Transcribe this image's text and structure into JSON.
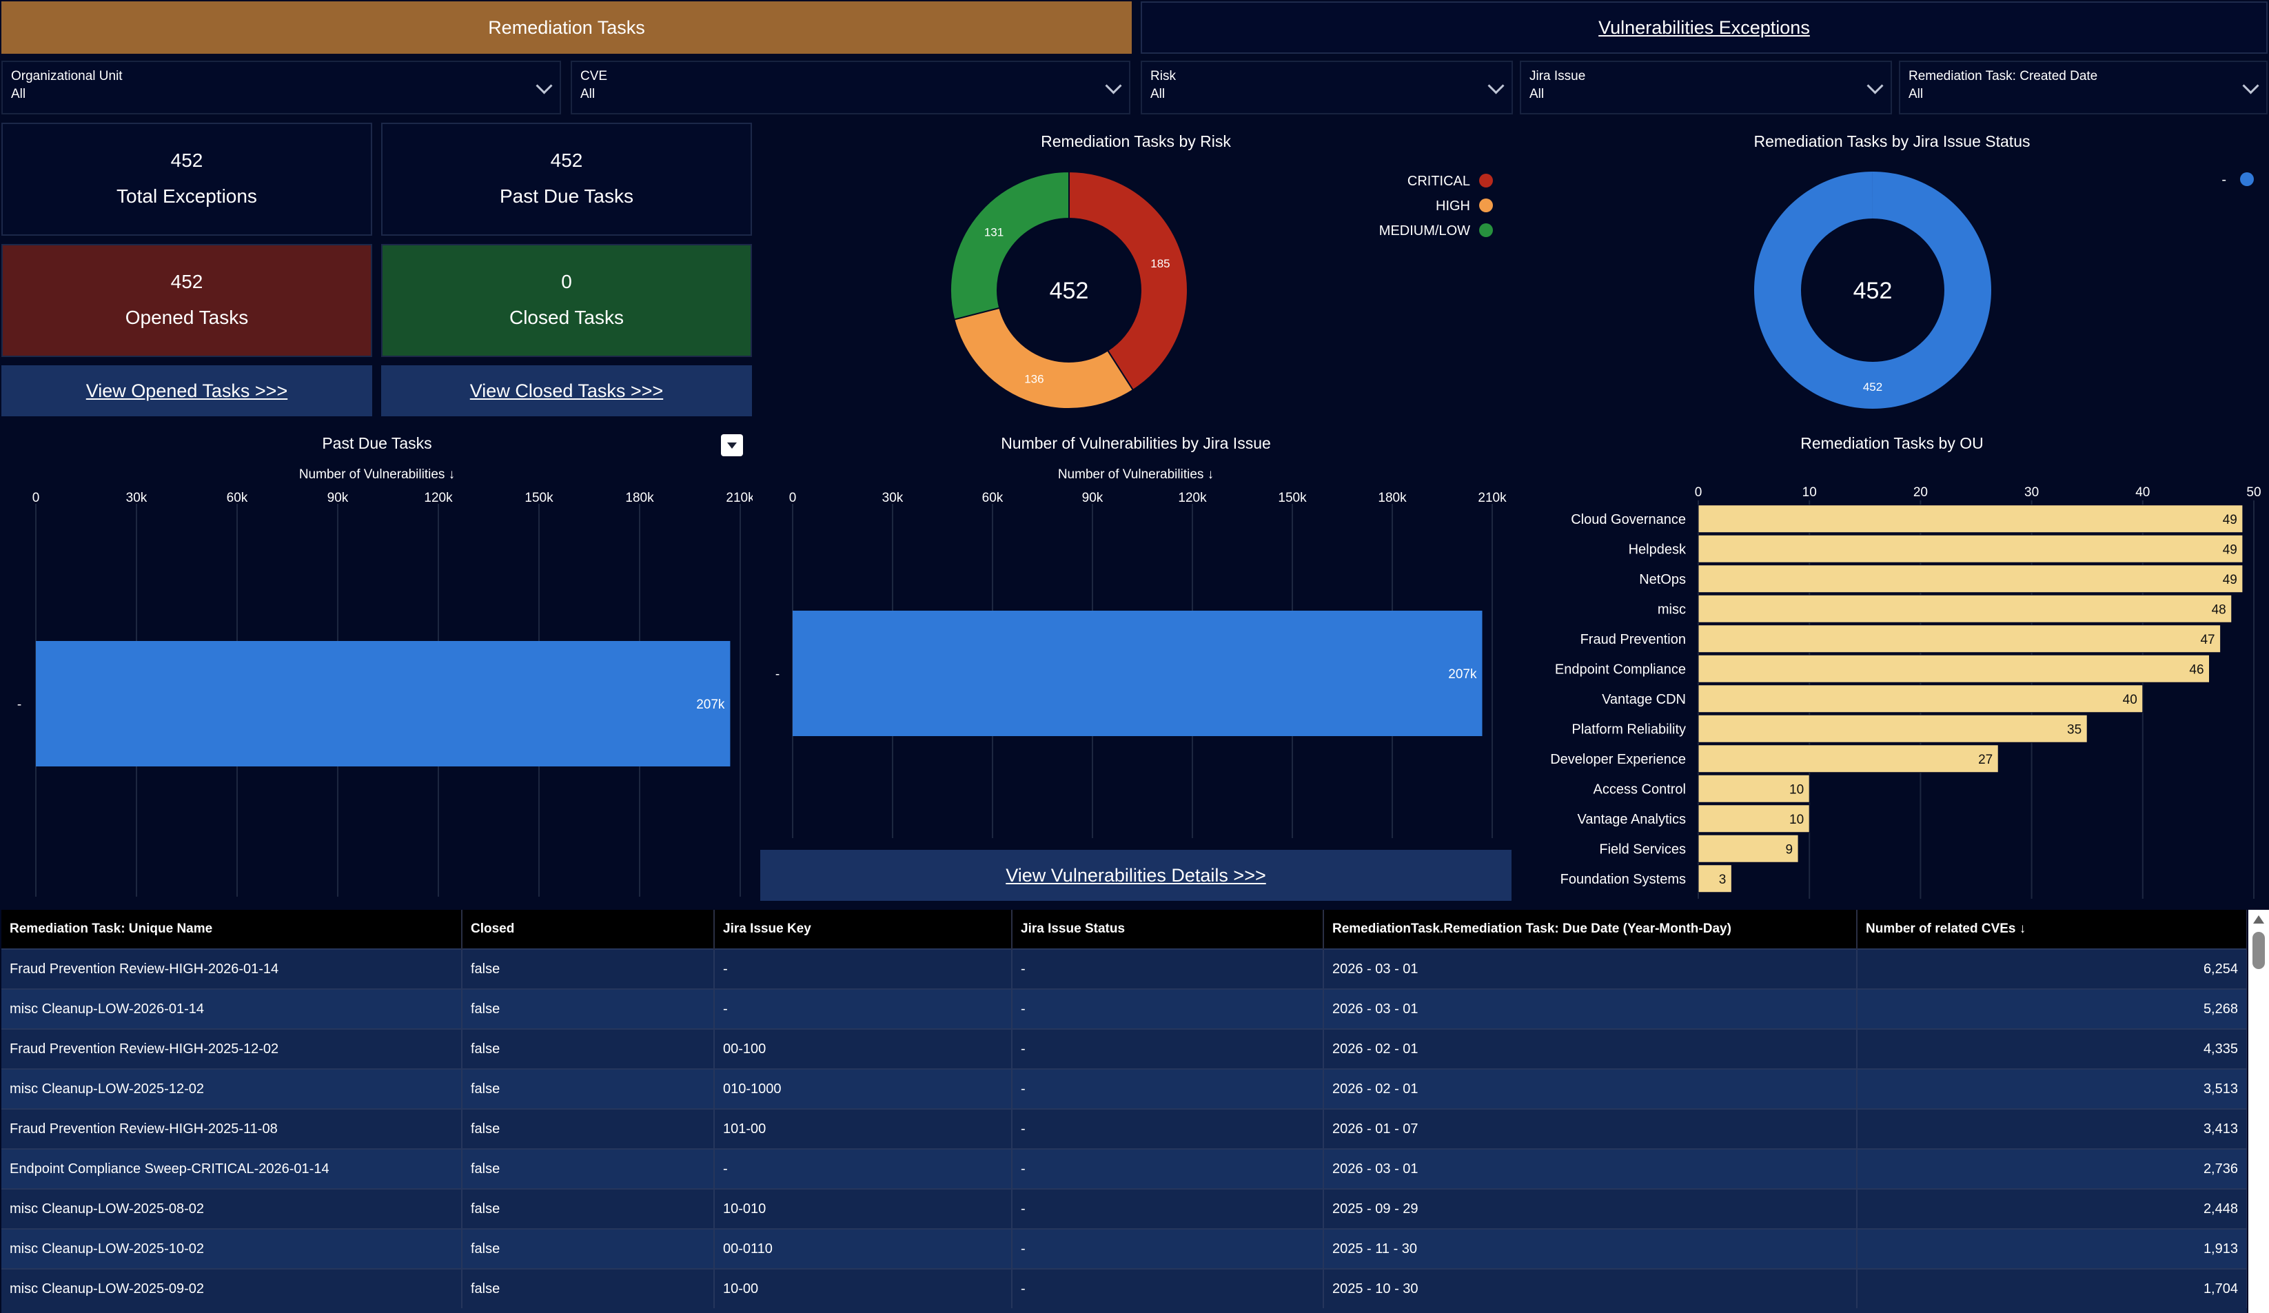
{
  "tabs": [
    {
      "label": "Remediation Tasks",
      "active": true
    },
    {
      "label": "Vulnerabilities Exceptions",
      "active": false
    }
  ],
  "filters": [
    {
      "label": "Organizational Unit",
      "value": "All"
    },
    {
      "label": "CVE",
      "value": "All"
    },
    {
      "label": "Risk",
      "value": "All"
    },
    {
      "label": "Jira Issue",
      "value": "All"
    },
    {
      "label": "Remediation Task: Created Date",
      "value": "All"
    }
  ],
  "kpis": {
    "total_exceptions": {
      "value": "452",
      "label": "Total Exceptions"
    },
    "past_due_tasks": {
      "value": "452",
      "label": "Past Due Tasks"
    },
    "opened_tasks": {
      "value": "452",
      "label": "Opened Tasks"
    },
    "closed_tasks": {
      "value": "0",
      "label": "Closed Tasks"
    }
  },
  "links": {
    "view_opened": "View Opened Tasks >>>",
    "view_closed": "View Closed Tasks >>>",
    "view_vuln_details": "View Vulnerabilities Details >>>"
  },
  "colors": {
    "critical": "#b8291b",
    "high": "#f39c48",
    "medium_low": "#27913e",
    "bar_blue": "#3079d8",
    "ou_bar": "#f4d891",
    "tab_active": "#9a6631",
    "opened_bg": "#5a1b1b",
    "closed_bg": "#17512b"
  },
  "chart_data": [
    {
      "id": "risk_donut",
      "type": "pie",
      "title": "Remediation Tasks by Risk",
      "center_label": "452",
      "categories": [
        "CRITICAL",
        "HIGH",
        "MEDIUM/LOW"
      ],
      "values": [
        185,
        136,
        131
      ]
    },
    {
      "id": "jira_status_donut",
      "type": "pie",
      "title": "Remediation Tasks by Jira Issue Status",
      "center_label": "452",
      "categories": [
        "-"
      ],
      "values": [
        452
      ]
    },
    {
      "id": "past_due_bar",
      "type": "bar",
      "title": "Past Due Tasks",
      "xlabel": "Number of Vulnerabilities ↓",
      "categories": [
        "-"
      ],
      "values": [
        207000
      ],
      "value_label": "207k",
      "xlim": [
        0,
        210000
      ],
      "ticks": [
        0,
        30000,
        60000,
        90000,
        120000,
        150000,
        180000,
        210000
      ],
      "tick_labels": [
        "0",
        "30k",
        "60k",
        "90k",
        "120k",
        "150k",
        "180k",
        "210k"
      ]
    },
    {
      "id": "vuln_by_jira_bar",
      "type": "bar",
      "title": "Number of Vulnerabilities by Jira Issue",
      "xlabel": "Number of Vulnerabilities ↓",
      "categories": [
        "-"
      ],
      "values": [
        207000
      ],
      "value_label": "207k",
      "xlim": [
        0,
        210000
      ],
      "ticks": [
        0,
        30000,
        60000,
        90000,
        120000,
        150000,
        180000,
        210000
      ],
      "tick_labels": [
        "0",
        "30k",
        "60k",
        "90k",
        "120k",
        "150k",
        "180k",
        "210k"
      ]
    },
    {
      "id": "ou_bar",
      "type": "bar",
      "title": "Remediation Tasks by OU",
      "categories": [
        "Cloud Governance",
        "Helpdesk",
        "NetOps",
        "misc",
        "Fraud Prevention",
        "Endpoint Compliance",
        "Vantage CDN",
        "Platform Reliability",
        "Developer Experience",
        "Access Control",
        "Vantage Analytics",
        "Field Services",
        "Foundation Systems"
      ],
      "values": [
        49,
        49,
        49,
        48,
        47,
        46,
        40,
        35,
        27,
        10,
        10,
        9,
        3
      ],
      "xlim": [
        0,
        50
      ],
      "ticks": [
        0,
        10,
        20,
        30,
        40,
        50
      ]
    }
  ],
  "table": {
    "columns": [
      "Remediation Task: Unique Name",
      "Closed",
      "Jira Issue Key",
      "Jira Issue Status",
      "RemediationTask.Remediation Task: Due Date (Year-Month-Day)",
      "Number of related CVEs ↓"
    ],
    "rows": [
      [
        "Fraud Prevention Review-HIGH-2026-01-14",
        "false",
        "-",
        "-",
        "2026 - 03 - 01",
        "6,254"
      ],
      [
        "misc Cleanup-LOW-2026-01-14",
        "false",
        "-",
        "-",
        "2026 - 03 - 01",
        "5,268"
      ],
      [
        "Fraud Prevention Review-HIGH-2025-12-02",
        "false",
        "00-100",
        "-",
        "2026 - 02 - 01",
        "4,335"
      ],
      [
        "misc Cleanup-LOW-2025-12-02",
        "false",
        "010-1000",
        "-",
        "2026 - 02 - 01",
        "3,513"
      ],
      [
        "Fraud Prevention Review-HIGH-2025-11-08",
        "false",
        "101-00",
        "-",
        "2026 - 01 - 07",
        "3,413"
      ],
      [
        "Endpoint Compliance Sweep-CRITICAL-2026-01-14",
        "false",
        "-",
        "-",
        "2026 - 03 - 01",
        "2,736"
      ],
      [
        "misc Cleanup-LOW-2025-08-02",
        "false",
        "10-010",
        "-",
        "2025 - 09 - 29",
        "2,448"
      ],
      [
        "misc Cleanup-LOW-2025-10-02",
        "false",
        "00-0110",
        "-",
        "2025 - 11 - 30",
        "1,913"
      ],
      [
        "misc Cleanup-LOW-2025-09-02",
        "false",
        "10-00",
        "-",
        "2025 - 10 - 30",
        "1,704"
      ]
    ]
  }
}
